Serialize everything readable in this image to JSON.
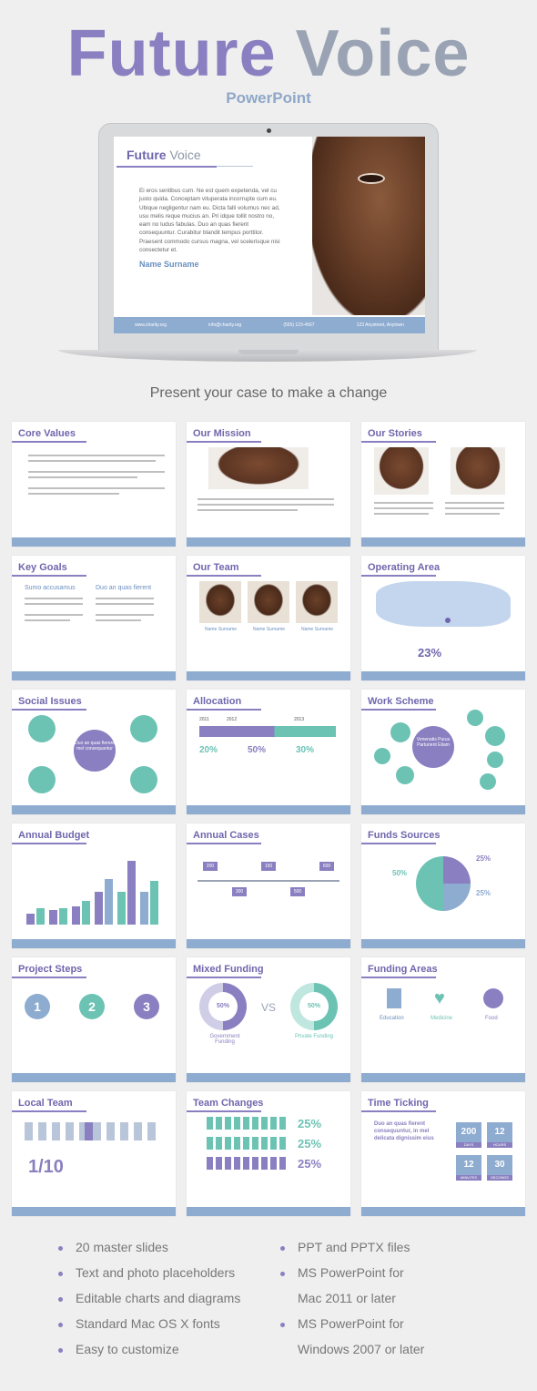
{
  "hero": {
    "title_part1": "Future",
    "title_part2": "Voice",
    "subtitle": "PowerPoint"
  },
  "screen": {
    "title_part1": "Future",
    "title_part2": "Voice",
    "body": "Ei eros sentibus cum. Ne est quem expetenda, vel cu justo quida. Conceptam vituperata incorrupte cum eu. Ubique negligentur nam eu. Dicta falli volumus nec ad, usu melis reque mucius an. Pri idque tollit nostro no, eam no ludus fabulas. Duo an quas fierent consequuntur. Curabitur blandit tempus porttitor. Praesent commodo cursus magna, vel scelerisque nisi consectetur et.",
    "name": "Name Surname",
    "footer": [
      "www.charity.org",
      "info@charity.org",
      "(555) 123-4567",
      "123 Anystreet, Anytown"
    ]
  },
  "tagline": "Present your case to make a change",
  "slides": [
    "Core Values",
    "Our Mission",
    "Our Stories",
    "Key Goals",
    "Our Team",
    "Operating Area",
    "Social Issues",
    "Allocation",
    "Work Scheme",
    "Annual Budget",
    "Annual Cases",
    "Funds Sources",
    "Project Steps",
    "Mixed Funding",
    "Funding Areas",
    "Local Team",
    "Team Changes",
    "Time Ticking"
  ],
  "slide_text": {
    "key_goals_col1": "Sumo accusamus",
    "key_goals_col2": "Duo an quas fierent",
    "team_name": "Name Surname",
    "operating_pct": "23%",
    "social_center": "Duo an quas fierent mel consequuntur",
    "alloc_years": [
      "2011",
      "2012",
      "2013"
    ],
    "alloc_pcts": [
      "20%",
      "50%",
      "30%"
    ],
    "work_center": "Venenatis Purus Parturient Etiam",
    "cases_values": [
      "200",
      "300",
      "150",
      "500",
      "600"
    ],
    "funds_pcts": [
      "50%",
      "25%",
      "25%"
    ],
    "steps": [
      "1",
      "2",
      "3"
    ],
    "mixed_pct": "50%",
    "mixed_vs": "VS",
    "mixed_left": "Government Funding",
    "mixed_right": "Private Funding",
    "areas": [
      "Education",
      "Medicine",
      "Food"
    ],
    "local_ratio": "1/10",
    "team_changes": [
      "25%",
      "25%",
      "25%"
    ],
    "time_heading": "Duo an quas fierent consequuntur, in mel delicata dignissim eius",
    "time_values": [
      "200",
      "12",
      "12",
      "30"
    ],
    "time_labels": [
      "DAYS",
      "HOURS",
      "MINUTES",
      "SECONDS"
    ]
  },
  "features_left": [
    "20 master slides",
    "Text and photo placeholders",
    "Editable charts and diagrams",
    "Standard Mac OS X fonts",
    "Easy to customize"
  ],
  "features_right": [
    "PPT and PPTX files",
    "MS PowerPoint for",
    "Mac 2011 or later",
    "MS PowerPoint for",
    "Windows 2007 or later"
  ],
  "colors": {
    "purple": "#8a7fc0",
    "teal": "#6cc3b4",
    "blue": "#8eabd0",
    "gray": "#9aa3b4"
  }
}
